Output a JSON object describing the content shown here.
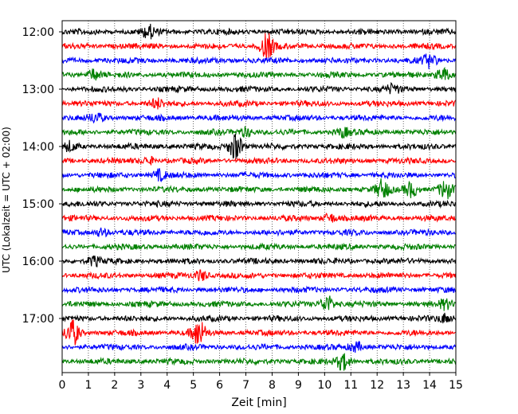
{
  "chart_data": {
    "type": "line",
    "title": "",
    "xlabel": "Zeit  [min]",
    "ylabel": "UTC (Lokalzeit = UTC + 02:00)",
    "xlim": [
      0,
      15
    ],
    "x_ticks": [
      "0",
      "1",
      "2",
      "3",
      "4",
      "5",
      "6",
      "7",
      "8",
      "9",
      "10",
      "11",
      "12",
      "13",
      "14",
      "15"
    ],
    "y_ticks": [
      "12:00",
      "13:00",
      "14:00",
      "15:00",
      "16:00",
      "17:00"
    ],
    "grid": "vertical-dotted",
    "trace_colors": [
      "#000000",
      "#ff0000",
      "#0000ff",
      "#008000"
    ],
    "start_time": "12:00",
    "trace_interval_min": 15,
    "trace_count": 24,
    "events": [
      {
        "trace": 0,
        "t": 3.3,
        "amp": 1.4
      },
      {
        "trace": 1,
        "t": 7.8,
        "amp": 3.0
      },
      {
        "trace": 2,
        "t": 14.0,
        "amp": 1.5
      },
      {
        "trace": 3,
        "t": 1.2,
        "amp": 1.2
      },
      {
        "trace": 3,
        "t": 14.5,
        "amp": 1.6
      },
      {
        "trace": 4,
        "t": 12.6,
        "amp": 0.9
      },
      {
        "trace": 5,
        "t": 3.6,
        "amp": 1.0
      },
      {
        "trace": 6,
        "t": 1.3,
        "amp": 1.0
      },
      {
        "trace": 7,
        "t": 7.0,
        "amp": 1.1
      },
      {
        "trace": 7,
        "t": 10.7,
        "amp": 1.0
      },
      {
        "trace": 8,
        "t": 6.6,
        "amp": 3.2
      },
      {
        "trace": 8,
        "t": 0.3,
        "amp": 1.0
      },
      {
        "trace": 9,
        "t": 3.3,
        "amp": 0.8
      },
      {
        "trace": 10,
        "t": 3.7,
        "amp": 1.2
      },
      {
        "trace": 11,
        "t": 12.2,
        "amp": 2.1
      },
      {
        "trace": 11,
        "t": 13.3,
        "amp": 1.8
      },
      {
        "trace": 11,
        "t": 14.6,
        "amp": 2.0
      },
      {
        "trace": 13,
        "t": 10.2,
        "amp": 1.0
      },
      {
        "trace": 14,
        "t": 1.5,
        "amp": 0.9
      },
      {
        "trace": 16,
        "t": 1.2,
        "amp": 1.0
      },
      {
        "trace": 17,
        "t": 5.3,
        "amp": 1.2
      },
      {
        "trace": 19,
        "t": 10.1,
        "amp": 2.0
      },
      {
        "trace": 19,
        "t": 14.6,
        "amp": 1.0
      },
      {
        "trace": 20,
        "t": 14.6,
        "amp": 1.0
      },
      {
        "trace": 21,
        "t": 0.4,
        "amp": 3.0
      },
      {
        "trace": 21,
        "t": 5.2,
        "amp": 3.0
      },
      {
        "trace": 22,
        "t": 11.2,
        "amp": 1.1
      },
      {
        "trace": 23,
        "t": 10.7,
        "amp": 2.0
      }
    ]
  }
}
